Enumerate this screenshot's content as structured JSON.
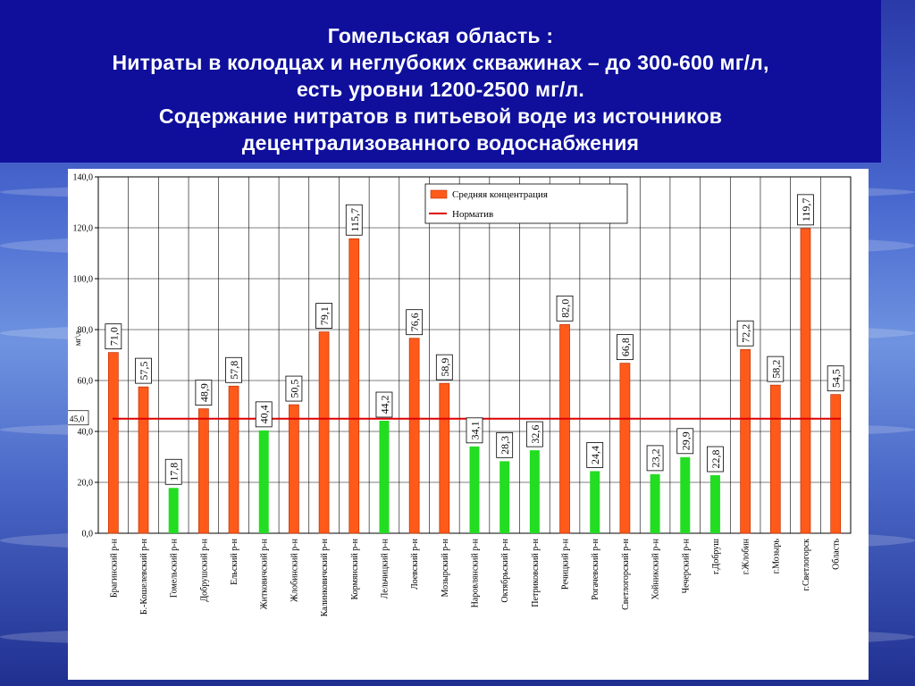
{
  "header": {
    "lines": [
      "Гомельская область :",
      "Нитраты в  колодцах и неглубоких скважинах – до 300-600 мг/л,",
      "есть уровни 1200-2500 мг/л.",
      "Содержание нитратов в питьевой воде из источников",
      "децентрализованного водоснабжения"
    ]
  },
  "colors": {
    "above_norm": "#ff5a1a",
    "below_norm": "#22dd22",
    "norm_line": "#dd0000",
    "header_bg": "#0f0f9c"
  },
  "chart_data": {
    "type": "bar",
    "ylabel": "мг\\л",
    "ylim": [
      0,
      140
    ],
    "yticks": [
      "0,0",
      "20,0",
      "40,0",
      "60,0",
      "80,0",
      "100,0",
      "120,0",
      "140,0"
    ],
    "categories": [
      "Брагинский р-н",
      "Б.-Кошелевский р-н",
      "Гомельский р-н",
      "Добрушский р-н",
      "Ельский р-н",
      "Житковичский р-н",
      "Жлобинский р-н",
      "Калинковичский р-н",
      "Кормянский р-н",
      "Лельчицкий р-н",
      "Лоевский р-н",
      "Мозырский р-н",
      "Наровлянский р-н",
      "Октябрьский р-н",
      "Петриковский р-н",
      "Речицкий р-н",
      "Рогачевский р-н",
      "Светлогорский р-н",
      "Хойникский р-н",
      "Чечерский р-н",
      "г.Добруш",
      "г.Жлобин",
      "г.Мозырь",
      "г.Светлогорск",
      "Область"
    ],
    "values": [
      71.0,
      57.5,
      17.8,
      48.9,
      57.8,
      40.4,
      50.5,
      79.1,
      115.7,
      44.2,
      76.6,
      58.9,
      34.1,
      28.3,
      32.6,
      82.0,
      24.4,
      66.8,
      23.2,
      29.9,
      22.8,
      72.2,
      58.2,
      119.7,
      54.5
    ],
    "value_labels": [
      "71,0",
      "57,5",
      "17,8",
      "48,9",
      "57,8",
      "40,4",
      "50,5",
      "79,1",
      "115,7",
      "44,2",
      "76,6",
      "58,9",
      "34,1",
      "28,3",
      "32,6",
      "82,0",
      "24,4",
      "66,8",
      "23,2",
      "29,9",
      "22,8",
      "72,2",
      "58,2",
      "119,7",
      "54,5"
    ],
    "bar_colors": [
      "orange",
      "orange",
      "green",
      "orange",
      "orange",
      "green",
      "orange",
      "orange",
      "orange",
      "green",
      "orange",
      "orange",
      "green",
      "green",
      "green",
      "orange",
      "green",
      "orange",
      "green",
      "green",
      "green",
      "orange",
      "orange",
      "orange",
      "orange"
    ],
    "norm": {
      "value": 45.0,
      "label": "45,0"
    },
    "legend": {
      "position": "top-right",
      "entries": [
        {
          "label": "Средняя концентрация",
          "kind": "bar",
          "color": "#ff5a1a"
        },
        {
          "label": "Норматив",
          "kind": "line",
          "color": "#dd0000"
        }
      ]
    },
    "grid": true
  }
}
